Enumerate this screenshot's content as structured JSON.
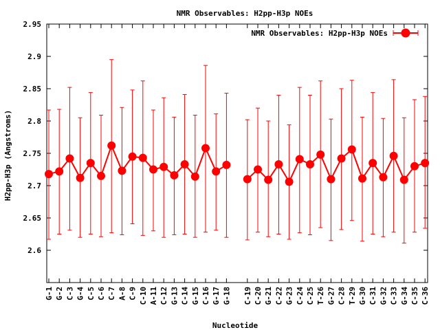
{
  "chart_data": {
    "type": "line",
    "title": "NMR Observables: H2pp-H3p NOEs",
    "xlabel": "Nucleotide",
    "ylabel": "H2pp-H3p (Angstroms)",
    "ylim": [
      2.55,
      2.95
    ],
    "yticks": [
      "2.6",
      "2.65",
      "2.7",
      "2.75",
      "2.8",
      "2.85",
      "2.9",
      "2.95"
    ],
    "grid": false,
    "legend_position": "top-right",
    "series": [
      {
        "name": "NMR Observables: H2pp-H3p NOEs",
        "color": "#ff0000",
        "segments": [
          {
            "labels": [
              "G-1",
              "G-2",
              "C-3",
              "G-4",
              "C-5",
              "C-6",
              "C-7",
              "A-8",
              "C-9",
              "C-10",
              "A-11",
              "C-12",
              "G-13",
              "C-14",
              "G-15",
              "C-16",
              "G-17",
              "G-18"
            ],
            "values": [
              2.718,
              2.722,
              2.742,
              2.712,
              2.735,
              2.715,
              2.762,
              2.723,
              2.745,
              2.743,
              2.725,
              2.729,
              2.716,
              2.733,
              2.714,
              2.758,
              2.722,
              2.732
            ],
            "err_low": [
              2.617,
              2.625,
              2.631,
              2.62,
              2.625,
              2.621,
              2.627,
              2.624,
              2.641,
              2.623,
              2.63,
              2.62,
              2.624,
              2.625,
              2.62,
              2.628,
              2.631,
              2.62
            ],
            "err_high": [
              2.817,
              2.818,
              2.852,
              2.805,
              2.844,
              2.809,
              2.895,
              2.821,
              2.848,
              2.862,
              2.817,
              2.836,
              2.806,
              2.841,
              2.809,
              2.886,
              2.811,
              2.843
            ]
          },
          {
            "labels": [
              "C-19",
              "C-20",
              "G-21",
              "C-22",
              "G-23",
              "C-24",
              "C-25",
              "T-26",
              "G-27",
              "C-28",
              "T-29",
              "G-30",
              "C-31",
              "G-32",
              "C-33",
              "G-34",
              "C-35",
              "C-36"
            ],
            "values": [
              2.71,
              2.725,
              2.709,
              2.733,
              2.706,
              2.741,
              2.733,
              2.748,
              2.71,
              2.742,
              2.756,
              2.711,
              2.735,
              2.713,
              2.746,
              2.709,
              2.73,
              2.735
            ],
            "err_low": [
              2.616,
              2.628,
              2.621,
              2.625,
              2.617,
              2.627,
              2.624,
              2.635,
              2.615,
              2.632,
              2.646,
              2.614,
              2.625,
              2.621,
              2.628,
              2.611,
              2.628,
              2.634
            ],
            "err_high": [
              2.802,
              2.82,
              2.8,
              2.84,
              2.794,
              2.852,
              2.84,
              2.862,
              2.803,
              2.85,
              2.863,
              2.806,
              2.844,
              2.804,
              2.864,
              2.805,
              2.833,
              2.838
            ]
          }
        ]
      }
    ]
  }
}
